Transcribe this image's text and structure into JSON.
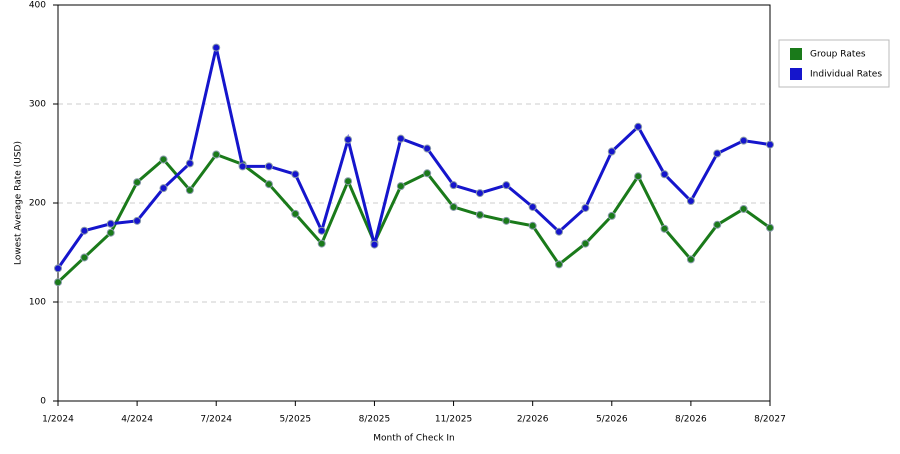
{
  "chart_data": {
    "type": "line",
    "x_label": "Month of Check In",
    "y_label": "Lowest Average Rate (USD)",
    "categories": [
      "1/2024",
      null,
      null,
      "4/2024",
      null,
      null,
      "7/2024",
      null,
      null,
      "5/2025",
      null,
      null,
      "8/2025",
      null,
      null,
      "11/2025",
      null,
      null,
      "2/2026",
      null,
      null,
      "5/2026",
      null,
      null,
      "8/2026",
      null,
      null,
      "8/2027"
    ],
    "series": [
      {
        "name": "Group Rates",
        "color": "#1a7a1a",
        "values": [
          120,
          145,
          170,
          221,
          244,
          213,
          249,
          239,
          219,
          189,
          159,
          222,
          160,
          217,
          230,
          196,
          188,
          182,
          177,
          138,
          159,
          187,
          227,
          174,
          143,
          178,
          194,
          175
        ]
      },
      {
        "name": "Individual Rates",
        "color": "#1515cc",
        "values": [
          134,
          172,
          179,
          182,
          215,
          240,
          357,
          237,
          237,
          229,
          172,
          264,
          158,
          265,
          255,
          218,
          210,
          218,
          196,
          171,
          195,
          252,
          277,
          229,
          202,
          250,
          263,
          259
        ]
      }
    ],
    "ylim": [
      0,
      400
    ],
    "yticks": [
      0,
      100,
      200,
      300,
      400
    ],
    "grid": true,
    "legend": "right"
  }
}
